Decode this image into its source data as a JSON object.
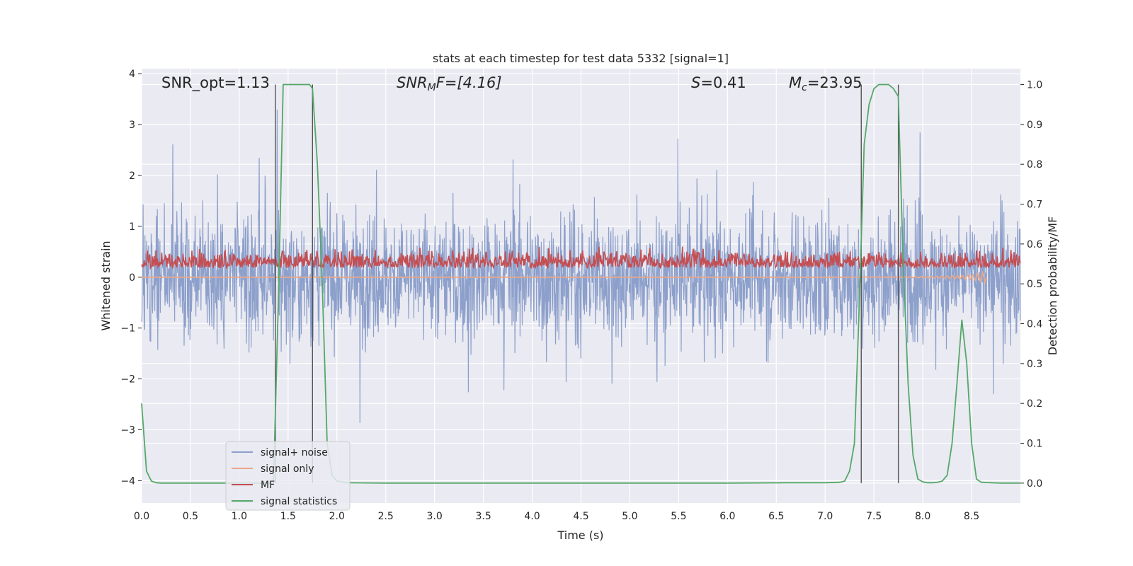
{
  "chart_data": {
    "type": "line",
    "title": "stats at each timestep for test data 5332 [signal=1]",
    "xlabel": "Time (s)",
    "ylabel_left": "Whitened strain",
    "ylabel_right": "Detection probability/MF",
    "xlim": [
      0.0,
      9.0
    ],
    "ylim_left": [
      -4.44,
      4.1
    ],
    "ylim_right": [
      -0.05,
      1.04
    ],
    "x_ticks": [
      0.0,
      0.5,
      1.0,
      1.5,
      2.0,
      2.5,
      3.0,
      3.5,
      4.0,
      4.5,
      5.0,
      5.5,
      6.0,
      6.5,
      7.0,
      7.5,
      8.0,
      8.5
    ],
    "x_tick_labels": [
      "0.0",
      "0.5",
      "1.0",
      "1.5",
      "2.0",
      "2.5",
      "3.0",
      "3.5",
      "4.0",
      "4.5",
      "5.0",
      "5.5",
      "6.0",
      "6.5",
      "7.0",
      "7.5",
      "8.0",
      "8.5"
    ],
    "y_left_ticks": [
      4,
      3,
      2,
      1,
      0,
      -1,
      -2,
      -3,
      -4
    ],
    "y_left_tick_labels": [
      "4",
      "3",
      "2",
      "1",
      "0",
      "−1",
      "−2",
      "−3",
      "−4"
    ],
    "y_right_ticks": [
      1.0,
      0.9,
      0.8,
      0.7,
      0.6,
      0.5,
      0.4,
      0.3,
      0.2,
      0.1,
      0.0
    ],
    "y_right_tick_labels": [
      "1.0",
      "0.9",
      "0.8",
      "0.7",
      "0.6",
      "0.5",
      "0.4",
      "0.3",
      "0.2",
      "0.1",
      "0.0"
    ],
    "grid": true,
    "legend_position": "lower-left",
    "annotations": {
      "snr_opt": "SNR_opt=1.13",
      "snr_mf_main": "SNR",
      "snr_mf_sub": "M",
      "snr_mf_rest": "F=[4.16]",
      "s_main": "S",
      "s_rest": "=0.41",
      "mc_main": "M",
      "mc_sub": "c",
      "mc_rest": "=23.95"
    },
    "vertical_lines": [
      1.37,
      1.75,
      7.37,
      7.75
    ],
    "series": [
      {
        "name": "signal+ noise",
        "axis": "left",
        "color": "#8da0cb",
        "style": "dense noise band",
        "approx_range": [
          -3.9,
          3.7
        ]
      },
      {
        "name": "signal only",
        "axis": "left",
        "color": "#e8a88a",
        "style": "chirp near zero ending ~8.7 s",
        "x": [
          0.0,
          2.0,
          4.0,
          6.0,
          7.0,
          7.8,
          8.2,
          8.5,
          8.65
        ],
        "values": [
          0.0,
          0.0,
          0.0,
          0.0,
          0.0,
          0.01,
          0.02,
          0.05,
          0.1
        ]
      },
      {
        "name": "MF",
        "axis": "right",
        "color": "#c44e52",
        "style": "noisy band",
        "approx_range": [
          0.5,
          0.64
        ]
      },
      {
        "name": "signal statistics",
        "axis": "right",
        "color": "#55a868",
        "x": [
          0.0,
          0.05,
          0.1,
          0.15,
          0.2,
          0.4,
          0.8,
          1.2,
          1.3,
          1.35,
          1.4,
          1.45,
          1.5,
          1.6,
          1.7,
          1.72,
          1.75,
          1.8,
          1.85,
          1.9,
          1.95,
          2.0,
          2.1,
          2.5,
          3.0,
          4.0,
          5.0,
          6.0,
          6.6,
          7.0,
          7.15,
          7.2,
          7.25,
          7.3,
          7.35,
          7.4,
          7.45,
          7.5,
          7.55,
          7.6,
          7.65,
          7.7,
          7.75,
          7.8,
          7.85,
          7.9,
          7.95,
          8.0,
          8.05,
          8.1,
          8.15,
          8.2,
          8.25,
          8.3,
          8.35,
          8.4,
          8.45,
          8.5,
          8.55,
          8.6,
          8.7,
          8.8,
          8.9,
          9.0
        ],
        "values": [
          0.2,
          0.03,
          0.005,
          0.001,
          0.0,
          0.0,
          0.0,
          0.0,
          0.0,
          0.0,
          0.45,
          1.0,
          1.0,
          1.0,
          1.0,
          1.0,
          0.99,
          0.8,
          0.5,
          0.1,
          0.02,
          0.005,
          0.001,
          0.0,
          0.0,
          0.0,
          0.0,
          0.0,
          0.001,
          0.001,
          0.002,
          0.005,
          0.03,
          0.1,
          0.45,
          0.85,
          0.95,
          0.99,
          1.0,
          1.0,
          1.0,
          0.99,
          0.97,
          0.55,
          0.25,
          0.07,
          0.01,
          0.003,
          0.001,
          0.001,
          0.002,
          0.005,
          0.02,
          0.1,
          0.25,
          0.41,
          0.3,
          0.1,
          0.01,
          0.002,
          0.001,
          0.0,
          0.0,
          0.0
        ]
      }
    ]
  }
}
